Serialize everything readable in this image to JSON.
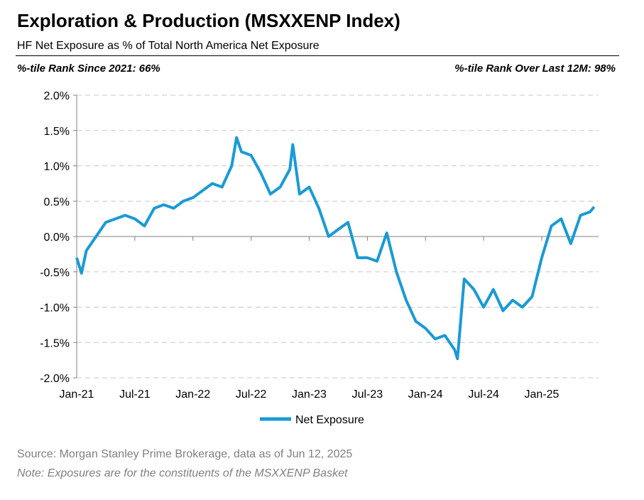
{
  "header": {
    "title": "Exploration & Production (MSXXENP Index)",
    "subtitle": "HF Net Exposure as % of Total North America Net Exposure",
    "rank_since_2021": "%-tile Rank Since 2021: 66%",
    "rank_last_12m": "%-tile Rank Over Last 12M: 98%"
  },
  "footer": {
    "source": "Source: Morgan Stanley Prime Brokerage, data as of Jun 12, 2025",
    "note": "Note: Exposures are for the constituents of the MSXXENP Basket"
  },
  "chart_data": {
    "type": "line",
    "title": "Exploration & Production (MSXXENP Index)",
    "xlabel": "",
    "ylabel": "",
    "ylim": [
      -2.0,
      2.0
    ],
    "grid": true,
    "legend": "bottom",
    "y_ticks": [
      "2.0%",
      "1.5%",
      "1.0%",
      "0.5%",
      "0.0%",
      "-0.5%",
      "-1.0%",
      "-1.5%",
      "-2.0%"
    ],
    "x_ticks": [
      "Jan-21",
      "Jul-21",
      "Jan-22",
      "Jul-22",
      "Jan-23",
      "Jul-23",
      "Jan-24",
      "Jul-24",
      "Jan-25"
    ],
    "color": "#1a9ad6",
    "series": [
      {
        "name": "Net Exposure",
        "x_months_since_jan21": [
          0,
          0.5,
          1,
          2,
          3,
          4,
          5,
          6,
          7,
          8,
          9,
          10,
          11,
          12,
          13,
          14,
          15,
          16,
          16.5,
          17,
          18,
          19,
          20,
          21,
          22,
          22.3,
          23,
          24,
          25,
          26,
          27,
          28,
          29,
          30,
          31,
          32,
          33,
          34,
          35,
          36,
          37,
          38,
          39,
          39.3,
          40,
          41,
          42,
          43,
          44,
          45,
          46,
          47,
          48,
          49,
          50,
          51,
          52,
          53,
          53.4
        ],
        "values": [
          -0.3,
          -0.52,
          -0.2,
          0.0,
          0.2,
          0.25,
          0.3,
          0.25,
          0.15,
          0.4,
          0.45,
          0.4,
          0.5,
          0.55,
          0.65,
          0.75,
          0.7,
          1.0,
          1.4,
          1.2,
          1.15,
          0.9,
          0.6,
          0.7,
          0.95,
          1.3,
          0.6,
          0.7,
          0.4,
          0.0,
          0.1,
          0.2,
          -0.3,
          -0.3,
          -0.35,
          0.05,
          -0.5,
          -0.9,
          -1.2,
          -1.3,
          -1.45,
          -1.4,
          -1.6,
          -1.73,
          -0.6,
          -0.75,
          -1.0,
          -0.75,
          -1.05,
          -0.9,
          -1.0,
          -0.85,
          -0.3,
          0.15,
          0.25,
          -0.1,
          0.3,
          0.35,
          0.42
        ]
      }
    ]
  }
}
